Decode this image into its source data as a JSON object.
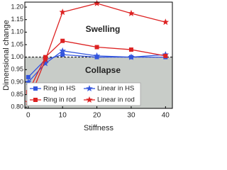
{
  "chart_data": {
    "type": "line",
    "x_label": "Stiffness",
    "y_label": "Dimensional change",
    "annotations": [
      "Swelling",
      "Collapse"
    ],
    "reference_line": 1,
    "x": [
      0,
      5,
      10,
      20,
      30,
      40
    ],
    "series": [
      {
        "name": "Ring in HS",
        "color": "#3355dd",
        "marker": "square",
        "values": [
          0.92,
          0.99,
          1.01,
          1.0,
          1.0,
          1.0
        ]
      },
      {
        "name": "Linear in HS",
        "color": "#3355dd",
        "marker": "star",
        "values": [
          0.9,
          0.975,
          1.025,
          1.005,
          1.0,
          1.01
        ]
      },
      {
        "name": "Ring in rod",
        "color": "#dd2222",
        "marker": "square",
        "values": [
          0.86,
          1.0,
          1.065,
          1.04,
          1.03,
          1.005
        ]
      },
      {
        "name": "Linear in rod",
        "color": "#dd2222",
        "marker": "star",
        "values": [
          0.82,
          0.99,
          1.18,
          1.215,
          1.175,
          1.14
        ]
      }
    ],
    "xlim": [
      -1,
      42
    ],
    "xticks": [
      0,
      10,
      20,
      30,
      40
    ],
    "ylim": [
      0.795,
      1.22
    ],
    "yticks": [
      {
        "value": 0.8,
        "label": "0.80"
      },
      {
        "value": 0.85,
        "label": "0.85"
      },
      {
        "value": 0.9,
        "label": "0.90"
      },
      {
        "value": 0.95,
        "label": "0.95"
      },
      {
        "value": 1.0,
        "label": "1.00"
      },
      {
        "value": 1.05,
        "label": "1.05"
      },
      {
        "value": 1.1,
        "label": "1.10"
      },
      {
        "value": 1.15,
        "label": "1.15"
      },
      {
        "value": 1.2,
        "label": "1.20"
      }
    ]
  }
}
